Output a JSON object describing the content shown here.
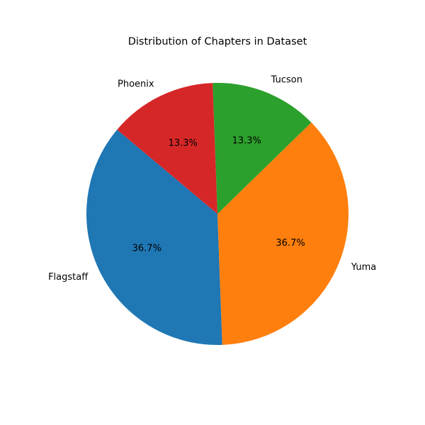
{
  "chart_data": {
    "type": "pie",
    "title": "Distribution of Chapters in Dataset",
    "slices": [
      {
        "label": "Flagstaff",
        "value": 36.7,
        "pct_label": "36.7%",
        "color": "#1f77b4"
      },
      {
        "label": "Yuma",
        "value": 36.7,
        "pct_label": "36.7%",
        "color": "#ff7f0e"
      },
      {
        "label": "Tucson",
        "value": 13.3,
        "pct_label": "13.3%",
        "color": "#2ca02c"
      },
      {
        "label": "Phoenix",
        "value": 13.3,
        "pct_label": "13.3%",
        "color": "#d62728"
      }
    ],
    "start_angle_deg": 140,
    "direction": "counterclockwise",
    "legend": "none"
  }
}
